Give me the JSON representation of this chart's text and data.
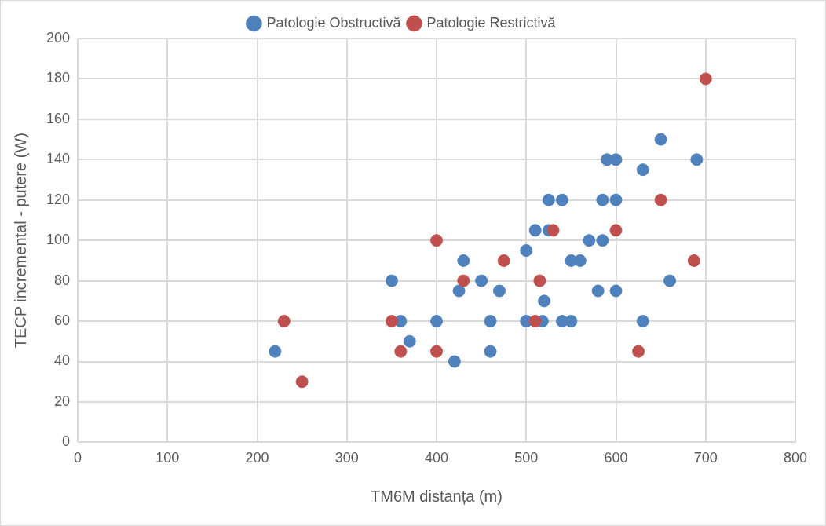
{
  "chart_data": {
    "type": "scatter",
    "xlabel": "TM6M distanța (m)",
    "ylabel": "TECP incremental - putere (W)",
    "xlim": [
      0,
      800
    ],
    "xticks": [
      0,
      100,
      200,
      300,
      400,
      500,
      600,
      700,
      800
    ],
    "ylim": [
      0,
      200
    ],
    "yticks": [
      0,
      20,
      40,
      60,
      80,
      100,
      120,
      140,
      160,
      180,
      200
    ],
    "grid": true,
    "legend": "top",
    "marker": "circle",
    "series": [
      {
        "name": "Patologie Obstructivă",
        "color": "#4f81bd",
        "x": [
          220,
          350,
          360,
          370,
          400,
          420,
          425,
          430,
          450,
          460,
          460,
          470,
          500,
          500,
          510,
          518,
          520,
          525,
          525,
          540,
          540,
          550,
          550,
          560,
          570,
          580,
          585,
          585,
          590,
          600,
          600,
          600,
          630,
          630,
          650,
          660,
          690
        ],
        "values": [
          45,
          80,
          60,
          50,
          60,
          40,
          75,
          90,
          80,
          60,
          45,
          75,
          95,
          60,
          105,
          60,
          70,
          120,
          105,
          120,
          60,
          90,
          60,
          90,
          100,
          75,
          120,
          100,
          140,
          140,
          120,
          75,
          135,
          60,
          150,
          80,
          140
        ]
      },
      {
        "name": "Patologie Restrictivă",
        "color": "#c0504d",
        "x": [
          230,
          250,
          350,
          360,
          400,
          400,
          430,
          475,
          510,
          515,
          530,
          600,
          625,
          650,
          687,
          700
        ],
        "values": [
          60,
          30,
          60,
          45,
          100,
          45,
          80,
          90,
          60,
          80,
          105,
          105,
          45,
          120,
          90,
          180
        ]
      }
    ]
  }
}
